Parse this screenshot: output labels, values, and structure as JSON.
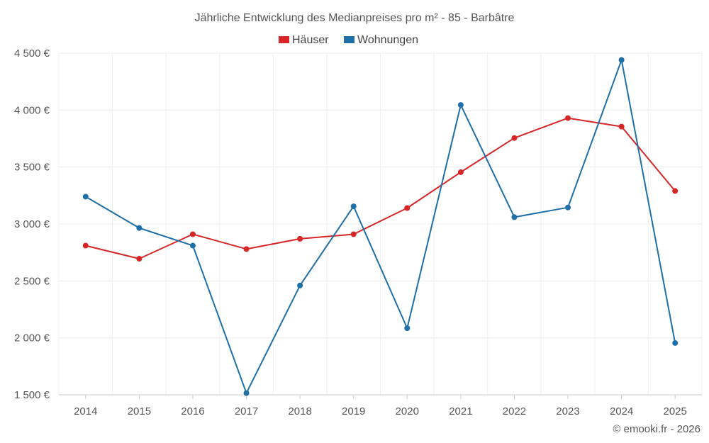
{
  "chart_data": {
    "type": "line",
    "title": "Jährliche Entwicklung des Medianpreises pro m² - 85 - Barbâtre",
    "categories": [
      "2014",
      "2015",
      "2016",
      "2017",
      "2018",
      "2019",
      "2020",
      "2021",
      "2022",
      "2023",
      "2024",
      "2025"
    ],
    "series": [
      {
        "name": "Häuser",
        "color": "#d62728",
        "values": [
          2810,
          2695,
          2910,
          2780,
          2870,
          2910,
          3140,
          3455,
          3755,
          3930,
          3855,
          3290
        ]
      },
      {
        "name": "Wohnungen",
        "color": "#1f6fa8",
        "values": [
          3240,
          2965,
          2810,
          1515,
          2460,
          3155,
          2085,
          4045,
          3060,
          3145,
          4440,
          1955
        ]
      }
    ],
    "ylim": [
      1500,
      4500
    ],
    "yticks": [
      1500,
      2000,
      2500,
      3000,
      3500,
      4000,
      4500
    ],
    "ytick_labels": [
      "1 500 €",
      "2 000 €",
      "2 500 €",
      "3 000 €",
      "3 500 €",
      "4 000 €",
      "4 500 €"
    ],
    "xlabel": "",
    "ylabel": "",
    "grid": true,
    "legend_position": "top-center",
    "credit": "© emooki.fr - 2026"
  }
}
